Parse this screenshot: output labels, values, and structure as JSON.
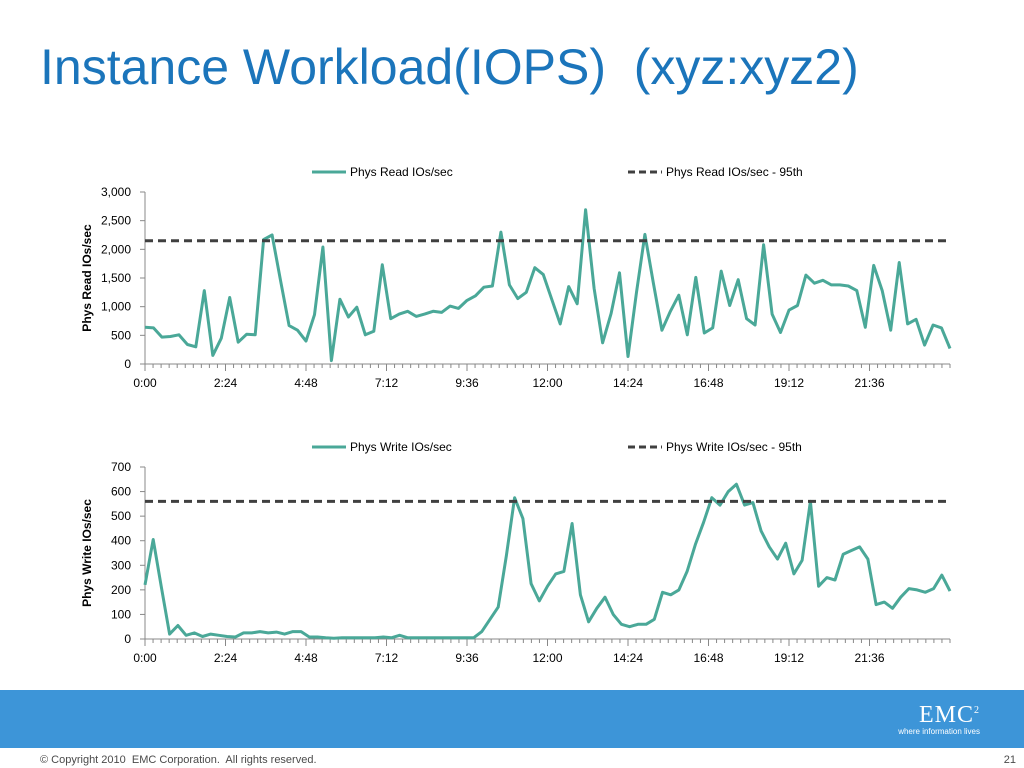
{
  "slide": {
    "title": "Instance Workload(IOPS)  (xyz:xyz2)",
    "copyright": "© Copyright 2010  EMC Corporation.  All rights reserved.",
    "page_number": "21",
    "logo_text": "EMC",
    "logo_superscript": "2",
    "logo_tagline": "where information lives",
    "footer_color": "#3d95d8",
    "title_color": "#1b75bb"
  },
  "chart_data": [
    {
      "type": "line",
      "ylabel": "Phys Read IOs/sec",
      "ylim": [
        0,
        3000
      ],
      "yticks": [
        0,
        500,
        1000,
        1500,
        2000,
        2500,
        3000
      ],
      "ytick_labels": [
        "0",
        "500",
        "1,000",
        "1,500",
        "2,000",
        "2,500",
        "3,000"
      ],
      "xlim": [
        0,
        24
      ],
      "xticks": [
        0,
        2.4,
        4.8,
        7.2,
        9.6,
        12,
        14.4,
        16.8,
        19.2,
        21.6
      ],
      "xtick_labels": [
        "0:00",
        "2:24",
        "4:48",
        "7:12",
        "9:36",
        "12:00",
        "14:24",
        "16:48",
        "19:12",
        "21:36"
      ],
      "legend_position": "top",
      "grid": false,
      "series": [
        {
          "name": "Phys Read IOs/sec",
          "color": "#4aa898",
          "style": "solid",
          "values": [
            640,
            630,
            470,
            480,
            510,
            340,
            300,
            1280,
            150,
            450,
            1160,
            380,
            520,
            510,
            2170,
            2250,
            1450,
            670,
            590,
            400,
            860,
            2040,
            60,
            1130,
            820,
            990,
            510,
            570,
            1730,
            790,
            870,
            920,
            830,
            870,
            920,
            900,
            1010,
            970,
            1110,
            1190,
            1340,
            1360,
            2300,
            1380,
            1140,
            1250,
            1680,
            1560,
            1130,
            700,
            1350,
            1050,
            2690,
            1320,
            370,
            880,
            1590,
            130,
            1250,
            2260,
            1410,
            590,
            920,
            1200,
            510,
            1510,
            540,
            630,
            1620,
            1020,
            1470,
            790,
            680,
            2080,
            870,
            550,
            940,
            1020,
            1550,
            1410,
            1460,
            1380,
            1380,
            1360,
            1280,
            640,
            1720,
            1280,
            590,
            1770,
            700,
            780,
            330,
            680,
            630,
            270
          ]
        },
        {
          "name": "Phys Read IOs/sec - 95th",
          "color": "#404040",
          "style": "dashed",
          "values": [
            2150
          ]
        }
      ]
    },
    {
      "type": "line",
      "ylabel": "Phys Write IOs/sec",
      "ylim": [
        0,
        700
      ],
      "yticks": [
        0,
        100,
        200,
        300,
        400,
        500,
        600,
        700
      ],
      "ytick_labels": [
        "0",
        "100",
        "200",
        "300",
        "400",
        "500",
        "600",
        "700"
      ],
      "xlim": [
        0,
        24
      ],
      "xticks": [
        0,
        2.4,
        4.8,
        7.2,
        9.6,
        12,
        14.4,
        16.8,
        19.2,
        21.6
      ],
      "xtick_labels": [
        "0:00",
        "2:24",
        "4:48",
        "7:12",
        "9:36",
        "12:00",
        "14:24",
        "16:48",
        "19:12",
        "21:36"
      ],
      "legend_position": "top",
      "grid": false,
      "series": [
        {
          "name": "Phys Write IOs/sec",
          "color": "#4aa898",
          "style": "solid",
          "values": [
            220,
            405,
            210,
            20,
            55,
            15,
            25,
            10,
            20,
            15,
            10,
            8,
            25,
            25,
            30,
            25,
            28,
            20,
            30,
            30,
            8,
            8,
            5,
            3,
            5,
            5,
            5,
            5,
            5,
            8,
            5,
            15,
            5,
            5,
            5,
            5,
            5,
            5,
            5,
            5,
            5,
            30,
            80,
            130,
            340,
            575,
            490,
            225,
            155,
            215,
            265,
            275,
            470,
            180,
            70,
            125,
            170,
            100,
            60,
            50,
            60,
            60,
            80,
            190,
            180,
            200,
            275,
            385,
            475,
            575,
            545,
            600,
            630,
            545,
            555,
            440,
            375,
            325,
            390,
            265,
            320,
            560,
            215,
            250,
            240,
            345,
            360,
            375,
            325,
            140,
            150,
            125,
            170,
            205,
            200,
            190,
            205,
            260,
            195
          ]
        },
        {
          "name": "Phys Write IOs/sec - 95th",
          "color": "#404040",
          "style": "dashed",
          "values": [
            560
          ]
        }
      ]
    }
  ]
}
